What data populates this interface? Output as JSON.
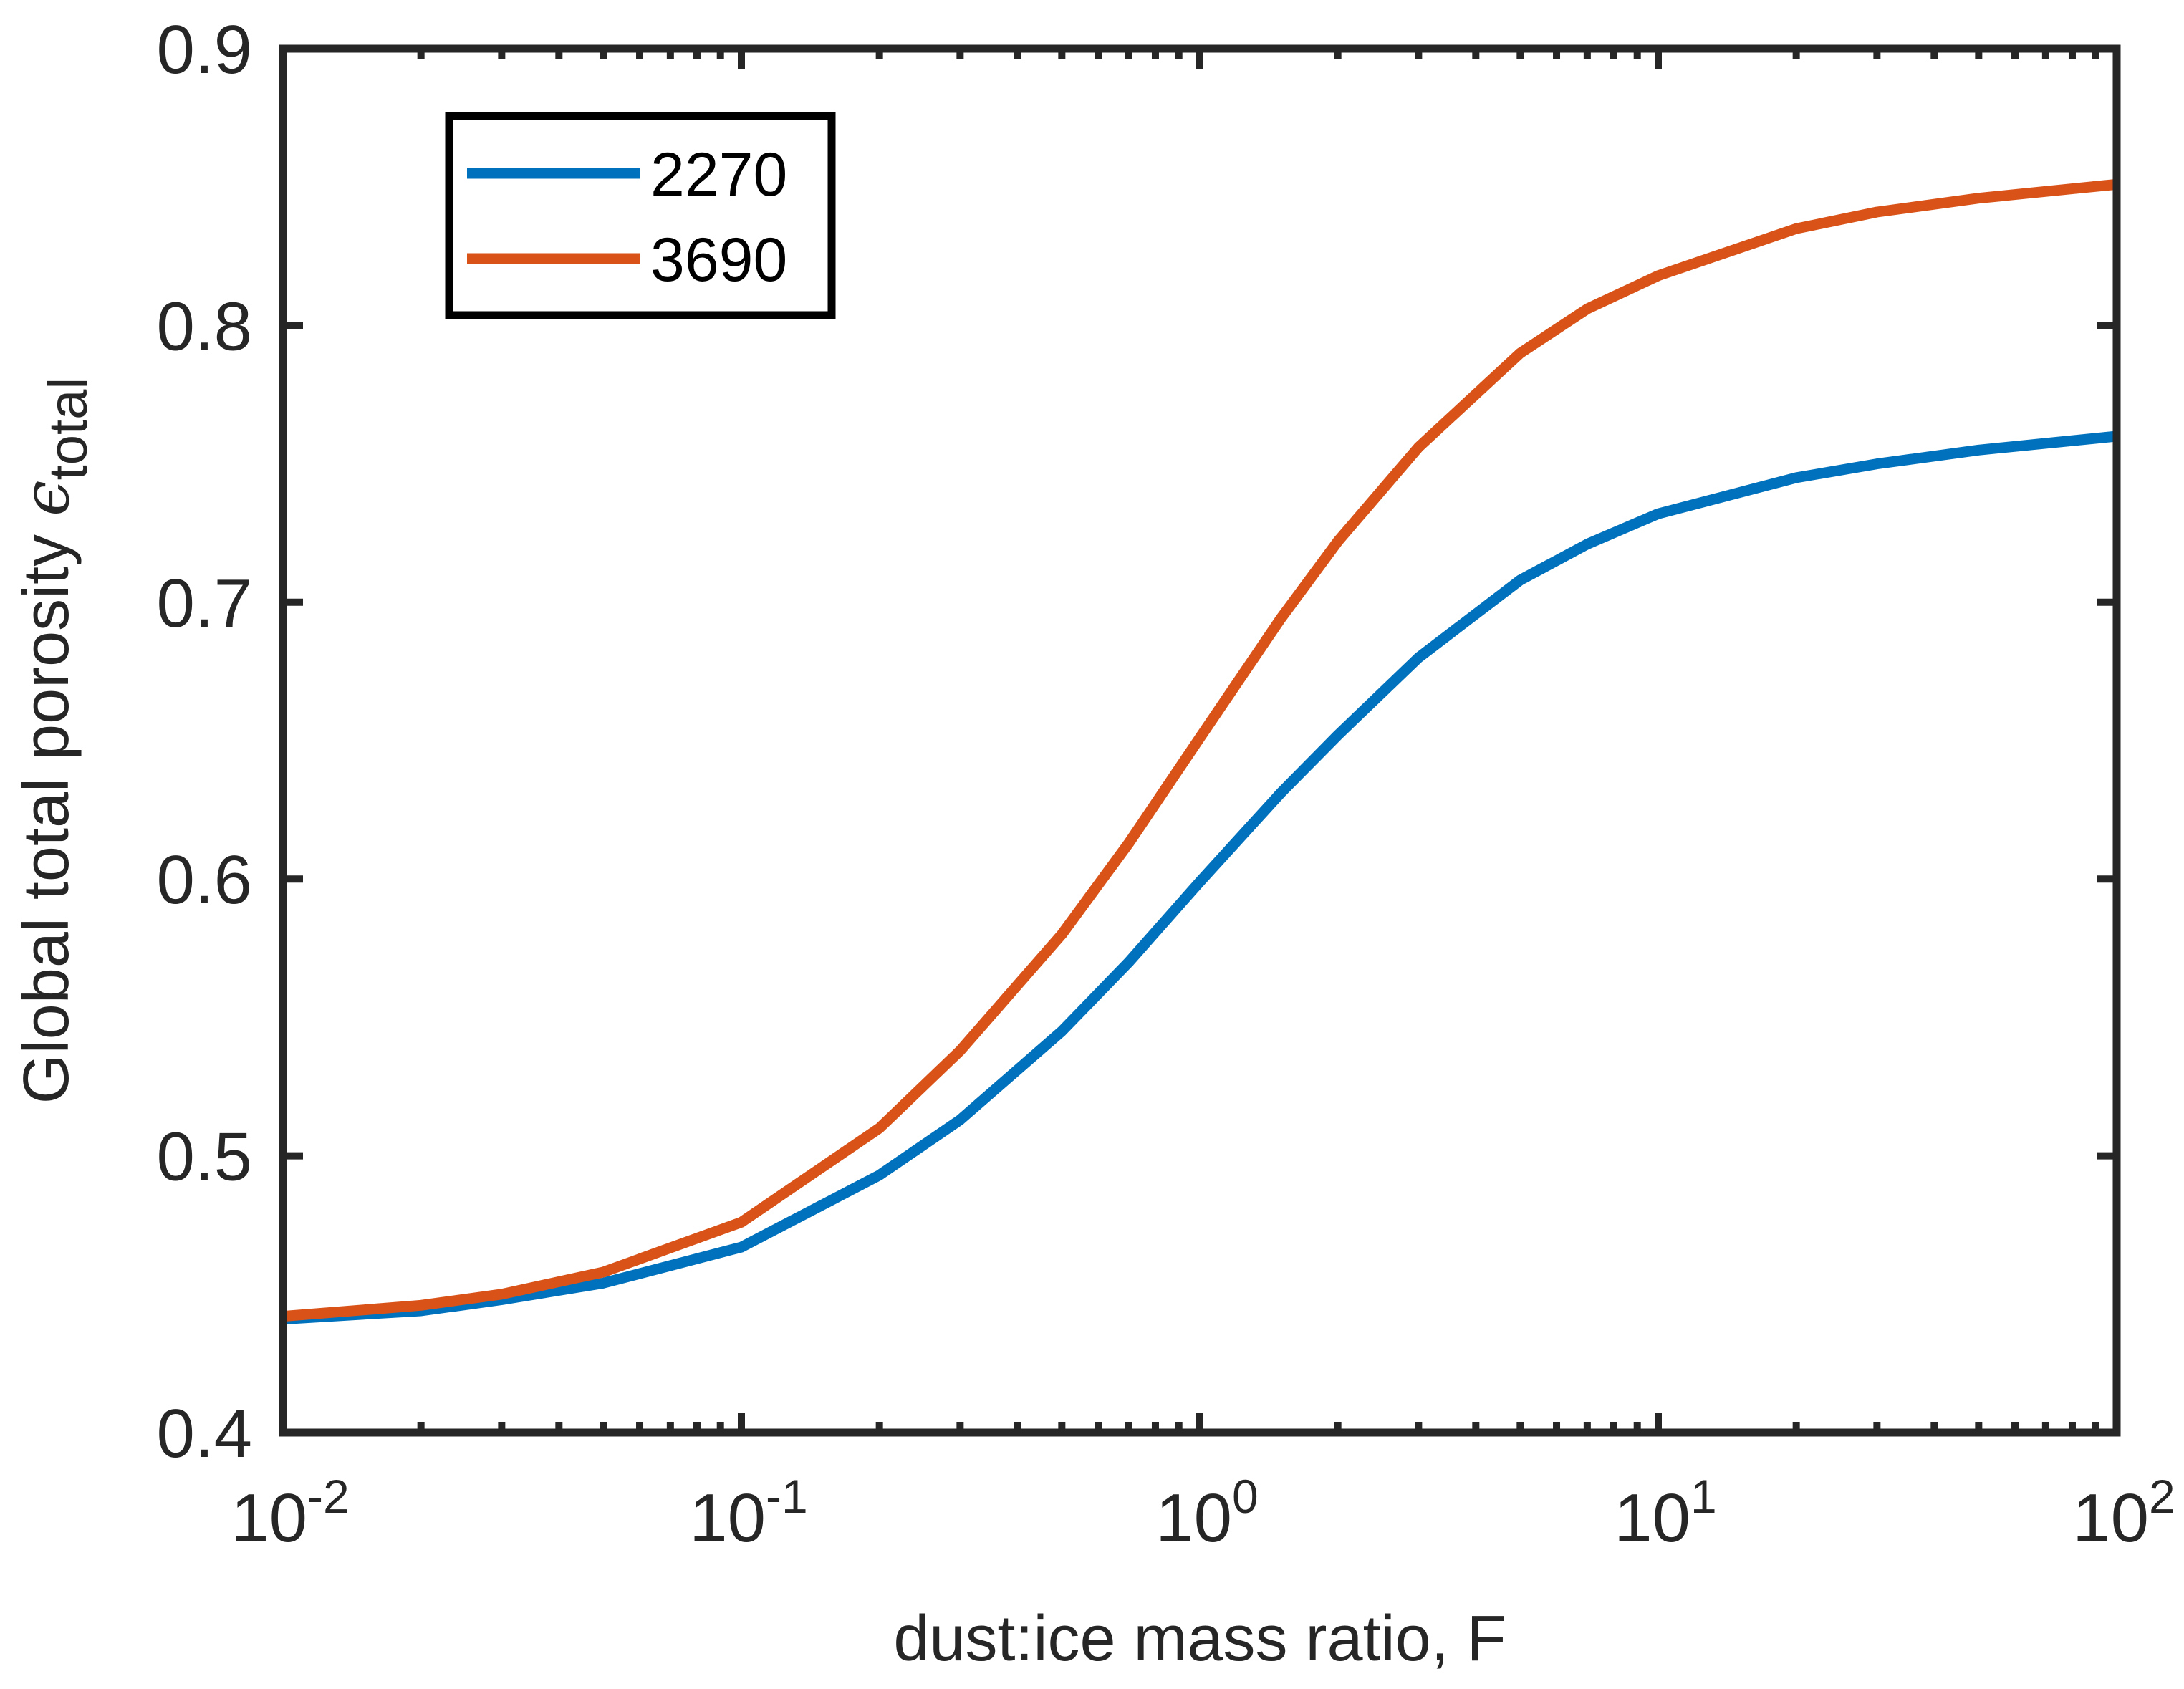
{
  "chart_data": {
    "type": "line",
    "title": "",
    "xlabel": "dust:ice mass ratio, F",
    "ylabel": {
      "main": "Global total porosity ",
      "symbol": "ϵ",
      "subscript": "total"
    },
    "xscale": "log",
    "xlim": [
      0.01,
      100
    ],
    "ylim": [
      0.4,
      0.9
    ],
    "xticks": [
      {
        "value": 0.01,
        "base": "10",
        "exp": "-2"
      },
      {
        "value": 0.1,
        "base": "10",
        "exp": "-1"
      },
      {
        "value": 1,
        "base": "10",
        "exp": "0"
      },
      {
        "value": 10,
        "base": "10",
        "exp": "1"
      },
      {
        "value": 100,
        "base": "10",
        "exp": "2"
      }
    ],
    "yticks": [
      {
        "value": 0.4,
        "label": "0.4"
      },
      {
        "value": 0.5,
        "label": "0.5"
      },
      {
        "value": 0.6,
        "label": "0.6"
      },
      {
        "value": 0.7,
        "label": "0.7"
      },
      {
        "value": 0.8,
        "label": "0.8"
      },
      {
        "value": 0.9,
        "label": "0.9"
      }
    ],
    "grid": false,
    "legend_position": "top-left",
    "series": [
      {
        "name": "2270",
        "color": "#0072BD",
        "x": [
          0.01,
          0.02,
          0.03,
          0.05,
          0.1,
          0.2,
          0.3,
          0.5,
          0.7,
          1,
          1.5,
          2,
          3,
          5,
          7,
          10,
          20,
          30,
          50,
          100
        ],
        "y": [
          0.441,
          0.444,
          0.448,
          0.454,
          0.467,
          0.493,
          0.513,
          0.545,
          0.57,
          0.599,
          0.631,
          0.652,
          0.68,
          0.708,
          0.721,
          0.732,
          0.745,
          0.75,
          0.755,
          0.76
        ]
      },
      {
        "name": "3690",
        "color": "#D95319",
        "x": [
          0.01,
          0.02,
          0.03,
          0.05,
          0.1,
          0.2,
          0.3,
          0.5,
          0.7,
          1,
          1.5,
          2,
          3,
          5,
          7,
          10,
          20,
          30,
          50,
          100
        ],
        "y": [
          0.442,
          0.446,
          0.45,
          0.458,
          0.476,
          0.51,
          0.538,
          0.58,
          0.613,
          0.651,
          0.694,
          0.722,
          0.756,
          0.79,
          0.806,
          0.818,
          0.835,
          0.841,
          0.846,
          0.851
        ]
      }
    ]
  }
}
